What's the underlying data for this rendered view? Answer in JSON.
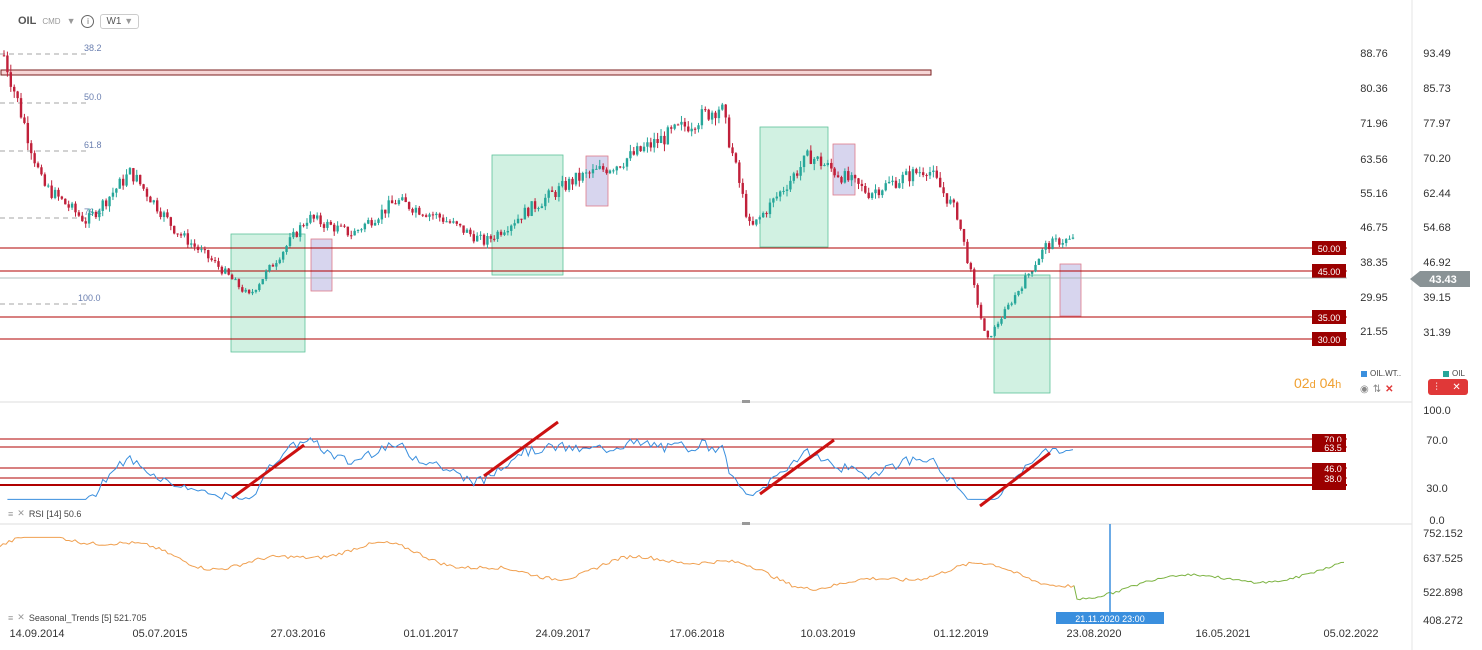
{
  "toolbar": {
    "symbol": "OIL",
    "type_label": "CMD",
    "timeframe": "W1"
  },
  "main_chart": {
    "price_axis_left": [
      "88.76",
      "80.36",
      "71.96",
      "63.56",
      "55.16",
      "46.75",
      "38.35",
      "29.95",
      "21.55"
    ],
    "price_axis_right": [
      "93.49",
      "85.73",
      "77.97",
      "70.20",
      "62.44",
      "54.68",
      "46.92",
      "39.15",
      "31.39"
    ],
    "current_price": "43.43",
    "fib_labels": [
      "38.2",
      "50.0",
      "61.8",
      "76.4",
      "100.0"
    ],
    "level_labels": [
      "50.00",
      "45.00",
      "35.00",
      "30.00"
    ],
    "countdown_days": "02",
    "countdown_days_unit": "d",
    "countdown_hours": "04",
    "countdown_hours_unit": "h",
    "legend_series_1": "OIL.WT..",
    "legend_series_2": "OIL"
  },
  "rsi_panel": {
    "title": "RSI [14] 50.6",
    "axis": [
      "100.0",
      "70.0",
      "30.0",
      "0.0"
    ],
    "level_labels": [
      "70.0",
      "63.5",
      "46.0",
      "38.0"
    ]
  },
  "seasonal_panel": {
    "title": "Seasonal_Trends [5] 521.705",
    "axis": [
      "752.152",
      "637.525",
      "522.898",
      "408.272"
    ],
    "crosshair_date": "21.11.2020 23:00"
  },
  "time_axis": [
    "14.09.2014",
    "05.07.2015",
    "27.03.2016",
    "01.01.2017",
    "24.09.2017",
    "17.06.2018",
    "10.03.2019",
    "01.12.2019",
    "23.08.2020",
    "16.05.2021",
    "05.02.2022"
  ],
  "colors": {
    "up": "#26a69a",
    "down": "#c0203a",
    "level": "#b00000",
    "rsi": "#3a8fde",
    "seasonal_past": "#f0a050",
    "seasonal_future": "#7cb342",
    "bull_zone": "#b2e8cf",
    "bear_zone": "#c9c7e8"
  },
  "chart_data": {
    "type": "candlestick",
    "timeframe": "W1",
    "x_range": [
      "14.09.2014",
      "05.02.2022"
    ],
    "close_series": [
      {
        "date": "2014-09",
        "close": 93
      },
      {
        "date": "2014-12",
        "close": 57
      },
      {
        "date": "2015-03",
        "close": 48
      },
      {
        "date": "2015-06",
        "close": 60
      },
      {
        "date": "2015-09",
        "close": 46
      },
      {
        "date": "2015-12",
        "close": 37
      },
      {
        "date": "2016-02",
        "close": 30
      },
      {
        "date": "2016-06",
        "close": 49
      },
      {
        "date": "2016-09",
        "close": 45
      },
      {
        "date": "2016-12",
        "close": 53
      },
      {
        "date": "2017-03",
        "close": 49
      },
      {
        "date": "2017-06",
        "close": 43
      },
      {
        "date": "2017-09",
        "close": 51
      },
      {
        "date": "2017-12",
        "close": 58
      },
      {
        "date": "2018-03",
        "close": 62
      },
      {
        "date": "2018-06",
        "close": 68
      },
      {
        "date": "2018-10",
        "close": 76
      },
      {
        "date": "2018-12",
        "close": 46
      },
      {
        "date": "2019-04",
        "close": 64
      },
      {
        "date": "2019-08",
        "close": 55
      },
      {
        "date": "2019-12",
        "close": 61
      },
      {
        "date": "2020-02",
        "close": 50
      },
      {
        "date": "2020-04",
        "close": 19
      },
      {
        "date": "2020-08",
        "close": 42
      },
      {
        "date": "2020-09",
        "close": 43.43
      }
    ],
    "horizontal_levels": [
      50,
      45,
      35,
      30
    ],
    "fibonacci": [
      "38.2",
      "50.0",
      "61.8",
      "76.4",
      "100.0"
    ],
    "rsi": {
      "period": 14,
      "value": 50.6,
      "levels": [
        70.0,
        63.5,
        46.0,
        38.0
      ]
    },
    "seasonal_trends": {
      "period": 5,
      "value": 521.705
    }
  }
}
